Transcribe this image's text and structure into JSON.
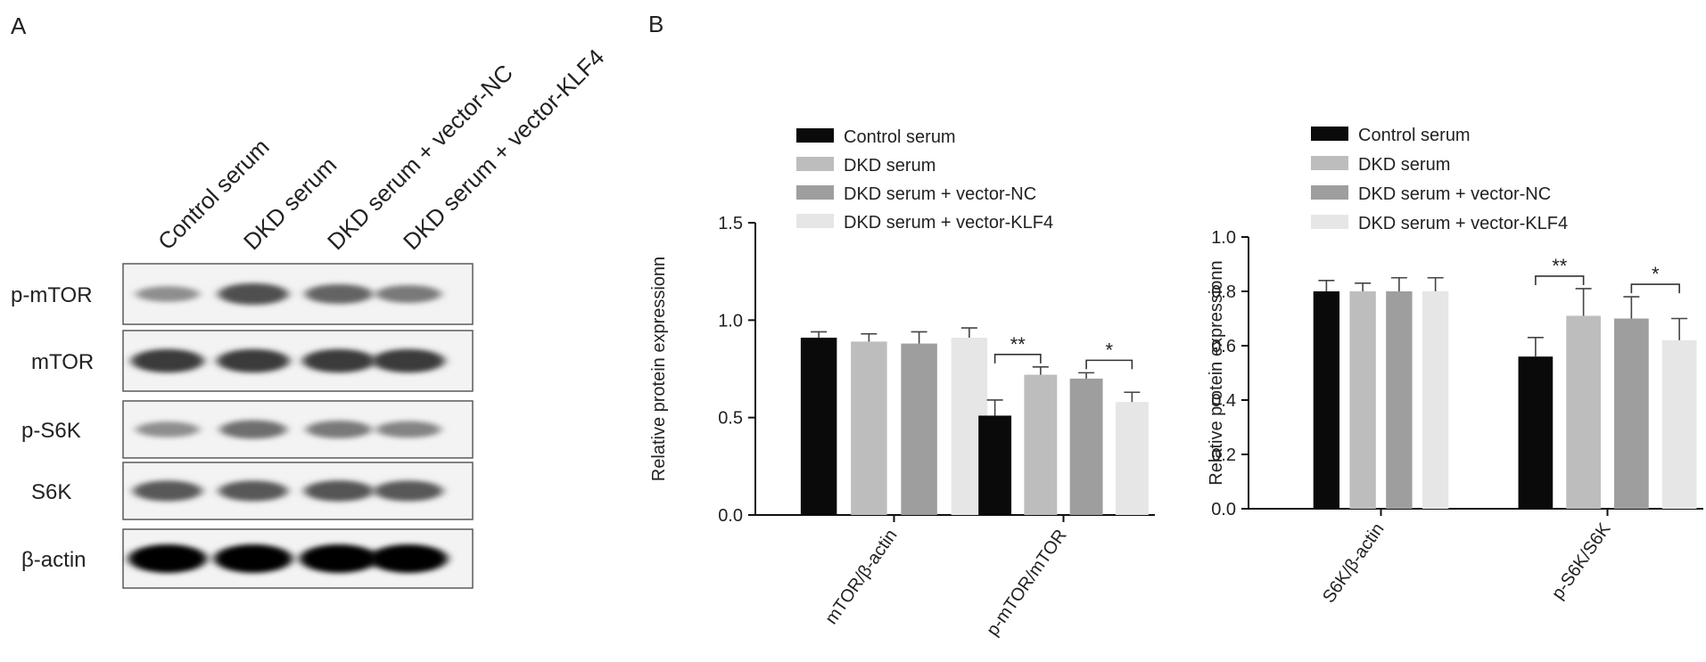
{
  "panels": [
    {
      "letter": "A"
    },
    {
      "letter": "B"
    }
  ],
  "blot": {
    "lanes": [
      "Control serum",
      "DKD serum",
      "DKD serum + vector-NC",
      "DKD serum + vector-KLF4"
    ],
    "rows": [
      {
        "label": "p-mTOR",
        "intensity": [
          0.35,
          0.65,
          0.55,
          0.45
        ]
      },
      {
        "label": "mTOR",
        "intensity": [
          0.75,
          0.75,
          0.75,
          0.75
        ]
      },
      {
        "label": "p-S6K",
        "intensity": [
          0.35,
          0.5,
          0.45,
          0.4
        ]
      },
      {
        "label": "S6K",
        "intensity": [
          0.6,
          0.6,
          0.62,
          0.6
        ]
      },
      {
        "label": "β-actin",
        "intensity": [
          1.0,
          1.0,
          1.0,
          1.0
        ]
      }
    ]
  },
  "series_colors": [
    "#0a0a0a",
    "#bdbdbd",
    "#9e9e9e",
    "#e6e6e6"
  ],
  "chart_data": [
    {
      "type": "bar",
      "categories": [
        "mTOR/β-actin",
        "p-mTOR/mTOR"
      ],
      "series": [
        {
          "name": "Control serum",
          "values": [
            0.91,
            0.51
          ],
          "errors": [
            0.03,
            0.08
          ]
        },
        {
          "name": "DKD serum",
          "values": [
            0.89,
            0.72
          ],
          "errors": [
            0.04,
            0.04
          ]
        },
        {
          "name": "DKD serum + vector-NC",
          "values": [
            0.88,
            0.7
          ],
          "errors": [
            0.06,
            0.03
          ]
        },
        {
          "name": "DKD serum + vector-KLF4",
          "values": [
            0.91,
            0.58
          ],
          "errors": [
            0.05,
            0.05
          ]
        }
      ],
      "ylabel": "Relative protein expressionn",
      "ylim": [
        0,
        1.5
      ],
      "yticks": [
        "0.0",
        "0.5",
        "1.0",
        "1.5"
      ],
      "legend": "top",
      "significance": [
        {
          "category": "p-mTOR/mTOR",
          "from": 0,
          "to": 1,
          "label": "**"
        },
        {
          "category": "p-mTOR/mTOR",
          "from": 2,
          "to": 3,
          "label": "*"
        }
      ]
    },
    {
      "type": "bar",
      "categories": [
        "S6K/β-actin",
        "p-S6K/S6K"
      ],
      "series": [
        {
          "name": "Control serum",
          "values": [
            0.8,
            0.56
          ],
          "errors": [
            0.04,
            0.07
          ]
        },
        {
          "name": "DKD serum",
          "values": [
            0.8,
            0.71
          ],
          "errors": [
            0.03,
            0.1
          ]
        },
        {
          "name": "DKD serum + vector-NC",
          "values": [
            0.8,
            0.7
          ],
          "errors": [
            0.05,
            0.08
          ]
        },
        {
          "name": "DKD serum + vector-KLF4",
          "values": [
            0.8,
            0.62
          ],
          "errors": [
            0.05,
            0.08
          ]
        }
      ],
      "ylabel": "Relative protein expressionn",
      "ylim": [
        0,
        1.0
      ],
      "yticks": [
        "0.0",
        "0.2",
        "0.4",
        "0.6",
        "0.8",
        "1.0"
      ],
      "legend": "top",
      "significance": [
        {
          "category": "p-S6K/S6K",
          "from": 0,
          "to": 1,
          "label": "**"
        },
        {
          "category": "p-S6K/S6K",
          "from": 2,
          "to": 3,
          "label": "*"
        }
      ]
    }
  ]
}
